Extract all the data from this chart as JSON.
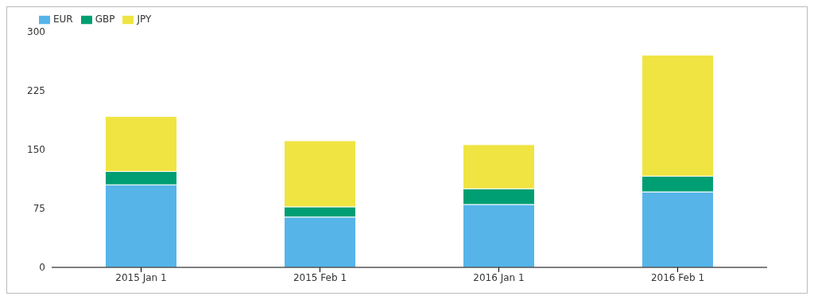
{
  "chart_data": {
    "type": "bar",
    "stacked": true,
    "categories": [
      "2015 Jan 1",
      "2015 Feb 1",
      "2016 Jan 1",
      "2016 Feb 1"
    ],
    "series": [
      {
        "name": "EUR",
        "color": "#56b4e9",
        "values": [
          105,
          64,
          80,
          96
        ]
      },
      {
        "name": "GBP",
        "color": "#009e73",
        "values": [
          17,
          13,
          20,
          20
        ]
      },
      {
        "name": "JPY",
        "color": "#f0e442",
        "values": [
          70,
          84,
          56,
          154
        ]
      }
    ],
    "ylim": [
      0,
      300
    ],
    "yticks": [
      0,
      75,
      150,
      225,
      300
    ],
    "grid": false,
    "legend": "top left"
  }
}
